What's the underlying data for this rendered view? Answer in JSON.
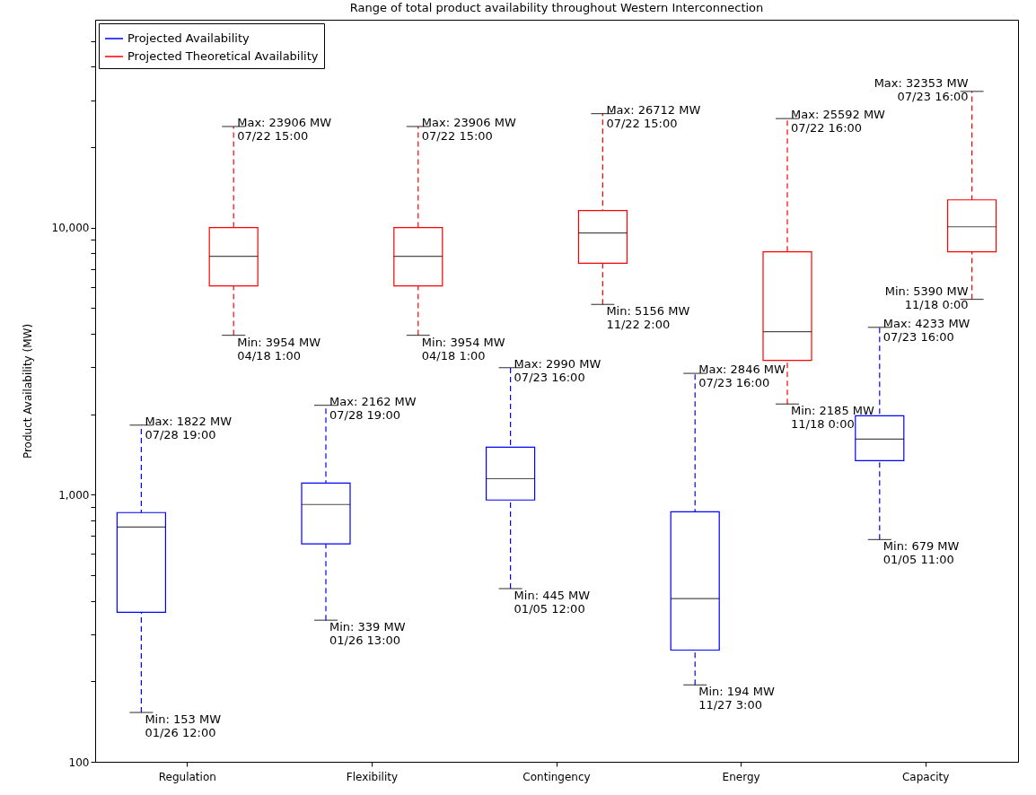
{
  "chart_data": {
    "type": "box",
    "title": "Range of total product availability throughout Western Interconnection",
    "ylabel": "Product Availability (MW)",
    "categories": [
      "Regulation",
      "Flexibility",
      "Contingency",
      "Energy",
      "Capacity"
    ],
    "series": [
      {
        "name": "Projected Availability",
        "color": "#0000ff",
        "boxes": [
          {
            "low": 153,
            "q1": 363,
            "median": 757,
            "q3": 857,
            "high": 1822
          },
          {
            "low": 339,
            "q1": 654,
            "median": 919,
            "q3": 1106,
            "high": 2162
          },
          {
            "low": 445,
            "q1": 955,
            "median": 1148,
            "q3": 1506,
            "high": 2990
          },
          {
            "low": 194,
            "q1": 262,
            "median": 408,
            "q3": 863,
            "high": 2846
          },
          {
            "low": 679,
            "q1": 1342,
            "median": 1614,
            "q3": 1974,
            "high": 4233
          }
        ]
      },
      {
        "name": "Projected Theoretical Availability",
        "color": "#ff0000",
        "boxes": [
          {
            "low": 3954,
            "q1": 6050,
            "median": 7810,
            "q3": 10000,
            "high": 23906
          },
          {
            "low": 3954,
            "q1": 6050,
            "median": 7810,
            "q3": 10000,
            "high": 23906
          },
          {
            "low": 5156,
            "q1": 7350,
            "median": 9550,
            "q3": 11580,
            "high": 26712
          },
          {
            "low": 2185,
            "q1": 3185,
            "median": 4080,
            "q3": 8110,
            "high": 25592
          },
          {
            "low": 5390,
            "q1": 8110,
            "median": 10070,
            "q3": 12700,
            "high": 32353
          }
        ]
      }
    ],
    "log": true,
    "ylim": [
      100,
      60000
    ],
    "yticks": [
      {
        "value": 100,
        "label": "100"
      },
      {
        "value": 200,
        "label": null
      },
      {
        "value": 300,
        "label": null
      },
      {
        "value": 400,
        "label": null
      },
      {
        "value": 500,
        "label": null
      },
      {
        "value": 600,
        "label": null
      },
      {
        "value": 700,
        "label": null
      },
      {
        "value": 800,
        "label": null
      },
      {
        "value": 900,
        "label": null
      },
      {
        "value": 1000,
        "label": "1,000"
      },
      {
        "value": 2000,
        "label": null
      },
      {
        "value": 3000,
        "label": null
      },
      {
        "value": 4000,
        "label": null
      },
      {
        "value": 5000,
        "label": null
      },
      {
        "value": 6000,
        "label": null
      },
      {
        "value": 7000,
        "label": null
      },
      {
        "value": 8000,
        "label": null
      },
      {
        "value": 9000,
        "label": null
      },
      {
        "value": 10000,
        "label": "10,000"
      },
      {
        "value": 20000,
        "label": null
      },
      {
        "value": 30000,
        "label": null
      },
      {
        "value": 40000,
        "label": null
      },
      {
        "value": 50000,
        "label": null
      }
    ],
    "legend": "top left",
    "line_style": "dashed",
    "annotations": [
      "Max: 1822 MW\n07/28 19:00",
      "Min: 153 MW\n01/26 12:00",
      "Max: 23906 MW\n07/22 15:00",
      "Min: 3954 MW\n04/18 1:00",
      "Max: 2162 MW\n07/28 19:00",
      "Min: 339 MW\n01/26 13:00",
      "Max: 23906 MW\n07/22 15:00",
      "Min: 3954 MW\n04/18 1:00",
      "Max: 2990 MW\n07/23 16:00",
      "Min: 445 MW\n01/05 12:00",
      "Max: 26712 MW\n07/22 15:00",
      "Min: 5156 MW\n11/22 2:00",
      "Max: 2846 MW\n07/23 16:00",
      "Min: 194 MW\n11/27 3:00",
      "Max: 25592 MW\n07/22 16:00",
      "Min: 2185 MW\n11/18 0:00",
      "Max: 4233 MW\n07/23 16:00",
      "Min: 679 MW\n01/05 11:00",
      "Max: 32353 MW\n07/23 16:00",
      "Min: 5390 MW\n11/18 0:00"
    ]
  }
}
